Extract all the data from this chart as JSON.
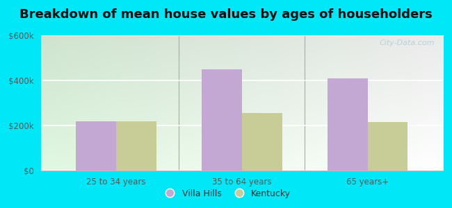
{
  "title": "Breakdown of mean house values by ages of householders",
  "categories": [
    "25 to 34 years",
    "35 to 64 years",
    "65 years+"
  ],
  "villa_hills": [
    220000,
    450000,
    410000
  ],
  "kentucky": [
    220000,
    255000,
    215000
  ],
  "bar_color_villa": "#c4a8d4",
  "bar_color_kentucky": "#c8cc96",
  "legend_labels": [
    "Villa Hills",
    "Kentucky"
  ],
  "ylim": [
    0,
    600000
  ],
  "yticks": [
    0,
    200000,
    400000,
    600000
  ],
  "ytick_labels": [
    "$0",
    "$200k",
    "$400k",
    "$600k"
  ],
  "background_outer": "#00e8f8",
  "watermark": "City-Data.com",
  "bar_width": 0.32,
  "title_fontsize": 13,
  "label_fontsize": 9,
  "tick_fontsize": 8.5,
  "tick_color": "#555555"
}
